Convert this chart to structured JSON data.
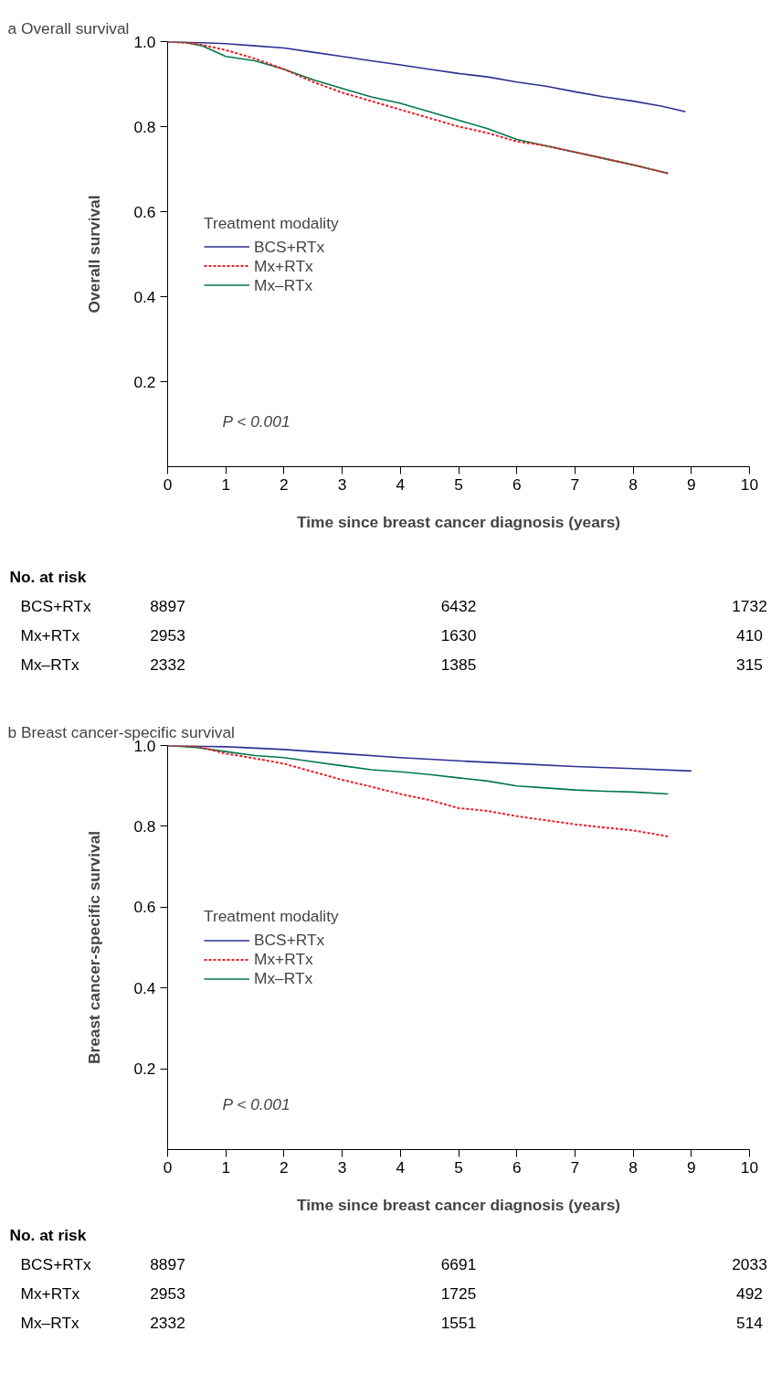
{
  "chart_data": [
    {
      "type": "line",
      "title": "a  Overall survival",
      "xlabel": "Time since breast cancer diagnosis (years)",
      "ylabel": "Overall survival",
      "legend_title": "Treatment modality",
      "legend": "left",
      "grid": false,
      "marker": "none",
      "xlim": [
        0,
        10
      ],
      "xticks": [
        0,
        1,
        2,
        3,
        4,
        5,
        6,
        7,
        8,
        9,
        10
      ],
      "ylim": [
        0,
        1.0
      ],
      "yticks": [
        0.2,
        0.4,
        0.6,
        0.8,
        {
          "value": 1.0,
          "label": "1.0"
        }
      ],
      "series": [
        {
          "name": "BCS+RTx",
          "color": "#2e3192",
          "line_style": "solid",
          "x": [
            0,
            0.5,
            1,
            1.5,
            2,
            2.5,
            3,
            3.5,
            4,
            4.5,
            5,
            5.5,
            6,
            6.5,
            7,
            7.5,
            8,
            8.5,
            8.9
          ],
          "values": [
            1.0,
            0.998,
            0.995,
            0.99,
            0.985,
            0.975,
            0.965,
            0.955,
            0.945,
            0.935,
            0.925,
            0.917,
            0.905,
            0.895,
            0.882,
            0.87,
            0.86,
            0.848,
            0.835
          ]
        },
        {
          "name": "Mx+RTx",
          "color": "#ed1c24",
          "line_style": "dashed",
          "x": [
            0,
            0.5,
            1,
            1.5,
            2,
            2.5,
            3,
            3.5,
            4,
            4.5,
            5,
            5.5,
            6,
            6.5,
            7,
            7.5,
            8,
            8.3,
            8.6
          ],
          "values": [
            1.0,
            0.995,
            0.98,
            0.96,
            0.935,
            0.905,
            0.88,
            0.86,
            0.84,
            0.82,
            0.8,
            0.785,
            0.765,
            0.755,
            0.74,
            0.725,
            0.71,
            0.7,
            0.69
          ]
        },
        {
          "name": "Mx–RTx",
          "color": "#00784a",
          "line_style": "solid",
          "x": [
            0,
            0.3,
            0.6,
            1,
            1.5,
            2,
            2.5,
            3,
            3.5,
            4,
            4.5,
            5,
            5.5,
            6,
            6.5,
            7,
            7.5,
            8,
            8.3,
            8.6
          ],
          "values": [
            1.0,
            0.998,
            0.99,
            0.965,
            0.955,
            0.935,
            0.91,
            0.89,
            0.87,
            0.855,
            0.835,
            0.815,
            0.795,
            0.77,
            0.755,
            0.74,
            0.725,
            0.71,
            0.7,
            0.69
          ]
        }
      ],
      "annotations": [
        "P < 0.001",
        "No. at risk",
        "BCS+RTx",
        "8897",
        "6432",
        "1732",
        "Mx+RTx",
        "2953",
        "1630",
        "410",
        "Mx–RTx",
        "2332",
        "1385",
        "315"
      ]
    },
    {
      "type": "line",
      "title": "b  Breast cancer-specific survival",
      "xlabel": "Time since breast cancer diagnosis (years)",
      "ylabel": "Breast cancer-specific survival",
      "legend_title": "Treatment modality",
      "legend": "left",
      "grid": false,
      "marker": "none",
      "xlim": [
        0,
        10
      ],
      "xticks": [
        0,
        1,
        2,
        3,
        4,
        5,
        6,
        7,
        8,
        9,
        10
      ],
      "ylim": [
        0,
        1.0
      ],
      "yticks": [
        0.2,
        0.4,
        0.6,
        0.8,
        {
          "value": 1.0,
          "label": "1.0"
        }
      ],
      "series": [
        {
          "name": "BCS+RTx",
          "color": "#2e3192",
          "line_style": "solid",
          "x": [
            0,
            1,
            2,
            3,
            4,
            5,
            6,
            7,
            8,
            9
          ],
          "values": [
            1.0,
            0.997,
            0.99,
            0.98,
            0.97,
            0.962,
            0.955,
            0.948,
            0.943,
            0.937
          ]
        },
        {
          "name": "Mx+RTx",
          "color": "#ed1c24",
          "line_style": "dashed",
          "x": [
            0,
            0.5,
            1,
            1.5,
            2,
            2.5,
            3,
            3.5,
            4,
            4.5,
            5,
            5.5,
            6,
            6.5,
            7,
            7.5,
            8,
            8.6
          ],
          "values": [
            1.0,
            0.998,
            0.98,
            0.968,
            0.955,
            0.935,
            0.915,
            0.898,
            0.88,
            0.865,
            0.845,
            0.838,
            0.825,
            0.815,
            0.805,
            0.797,
            0.79,
            0.775
          ]
        },
        {
          "name": "Mx–RTx",
          "color": "#00784a",
          "line_style": "solid",
          "x": [
            0,
            0.5,
            1,
            1.5,
            2,
            2.5,
            3,
            3.5,
            4,
            4.5,
            5,
            5.5,
            6,
            6.5,
            7,
            7.5,
            8,
            8.6
          ],
          "values": [
            1.0,
            0.995,
            0.985,
            0.975,
            0.97,
            0.96,
            0.95,
            0.94,
            0.935,
            0.928,
            0.92,
            0.912,
            0.9,
            0.895,
            0.89,
            0.887,
            0.885,
            0.88
          ]
        }
      ],
      "annotations": [
        "P < 0.001",
        "No. at risk",
        "BCS+RTx",
        "8897",
        "6691",
        "2033",
        "Mx+RTx",
        "2953",
        "1725",
        "492",
        "Mx–RTx",
        "2332",
        "1551",
        "514"
      ]
    }
  ]
}
